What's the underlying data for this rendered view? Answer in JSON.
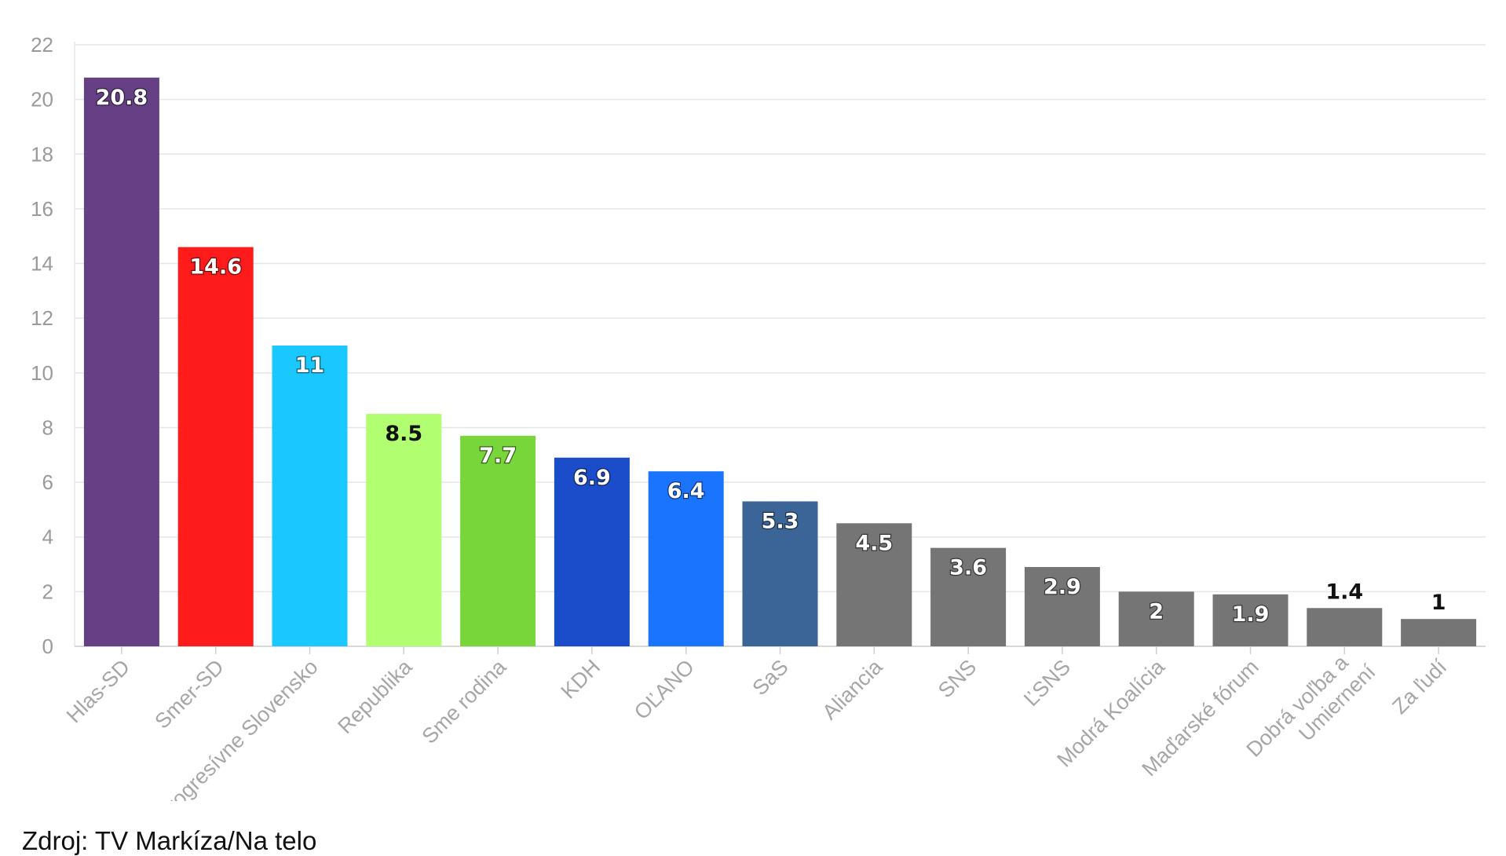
{
  "chart_data": {
    "type": "bar",
    "title": "",
    "xlabel": "",
    "ylabel": "",
    "ylim": [
      0,
      22
    ],
    "yticks": [
      0,
      2,
      4,
      6,
      8,
      10,
      12,
      14,
      16,
      18,
      20,
      22
    ],
    "grid": true,
    "categories": [
      "Hlas-SD",
      "Smer-SD",
      "Progresívne Slovensko",
      "Republika",
      "Sme rodina",
      "KDH",
      "OĽANO",
      "SaS",
      "Aliancia",
      "SNS",
      "ĽSNS",
      "Modrá Koalícia",
      "Maďarské fórum",
      "Dobrá voľba a Umiernení",
      "Za ľudí"
    ],
    "values": [
      20.8,
      14.6,
      11,
      8.5,
      7.7,
      6.9,
      6.4,
      5.3,
      4.5,
      3.6,
      2.9,
      2,
      1.9,
      1.4,
      1
    ],
    "value_labels": [
      "20.8",
      "14.6",
      "11",
      "8.5",
      "7.7",
      "6.9",
      "6.4",
      "5.3",
      "4.5",
      "3.6",
      "2.9",
      "2",
      "1.9",
      "1.4",
      "1"
    ],
    "colors": [
      "#654085",
      "#fe1b1b",
      "#1bc7ff",
      "#b1fe71",
      "#79d63a",
      "#1b4dca",
      "#1b74fe",
      "#3a6596",
      "#757575",
      "#757575",
      "#757575",
      "#757575",
      "#757575",
      "#757575",
      "#757575"
    ],
    "label_colors": [
      "#ffffff",
      "#ffffff",
      "#ffffff",
      "#111111",
      "#ffffff",
      "#ffffff",
      "#ffffff",
      "#ffffff",
      "#ffffff",
      "#ffffff",
      "#ffffff",
      "#ffffff",
      "#ffffff",
      "#111111",
      "#111111"
    ],
    "label_outside": [
      false,
      false,
      false,
      false,
      false,
      false,
      false,
      false,
      false,
      false,
      false,
      false,
      false,
      true,
      true
    ]
  },
  "source_text": "Zdroj: TV Markíza/Na telo"
}
